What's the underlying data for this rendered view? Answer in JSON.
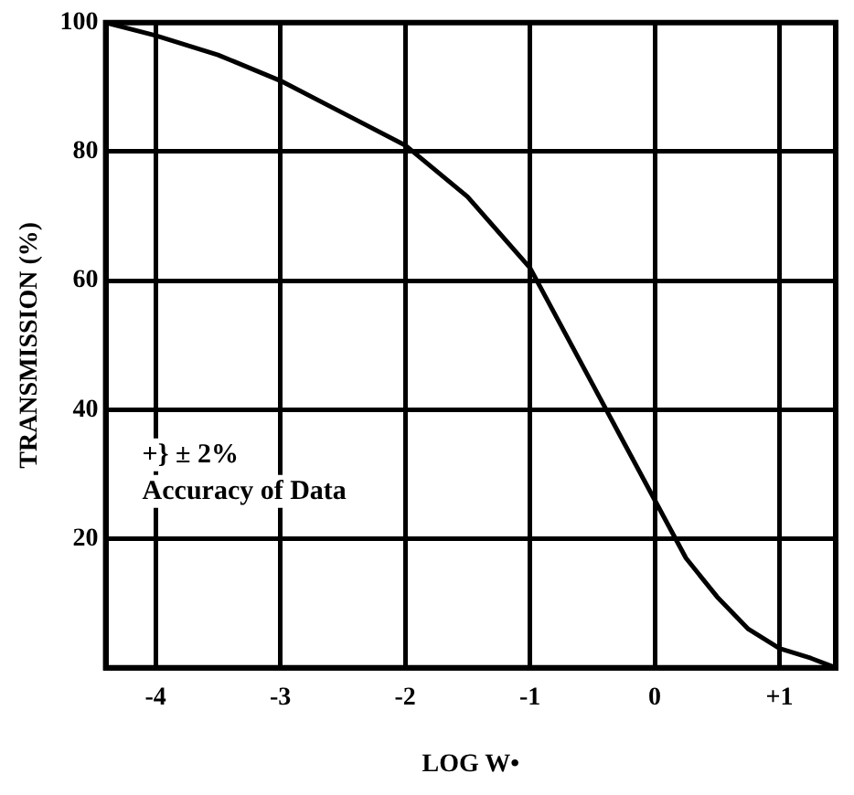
{
  "chart_data": {
    "type": "line",
    "xlabel": "LOG W•",
    "ylabel": "TRANSMISSION (%)",
    "x": [
      -4.4,
      -4,
      -3.5,
      -3,
      -2.5,
      -2,
      -1.5,
      -1,
      -0.5,
      -0.25,
      0,
      0.25,
      0.5,
      0.75,
      1,
      1.25,
      1.45
    ],
    "series": [
      {
        "color": "#000000",
        "values": [
          100,
          98,
          95,
          91,
          86,
          81,
          73,
          62,
          44,
          35,
          26,
          17,
          11,
          6,
          3,
          1.5,
          0
        ]
      }
    ],
    "xlim": [
      -4.4,
      1.45
    ],
    "xticks": [
      -4,
      -3,
      -2,
      -1,
      0,
      {
        "value": 1,
        "label": "+1"
      }
    ],
    "ylim": [
      0,
      100
    ],
    "yticks": [
      20,
      40,
      60,
      80,
      100
    ],
    "grid": true,
    "legend": false,
    "marker": "none",
    "line_style": "solid",
    "annotations": [
      "+} ± 2%",
      "Accuracy of Data"
    ]
  }
}
